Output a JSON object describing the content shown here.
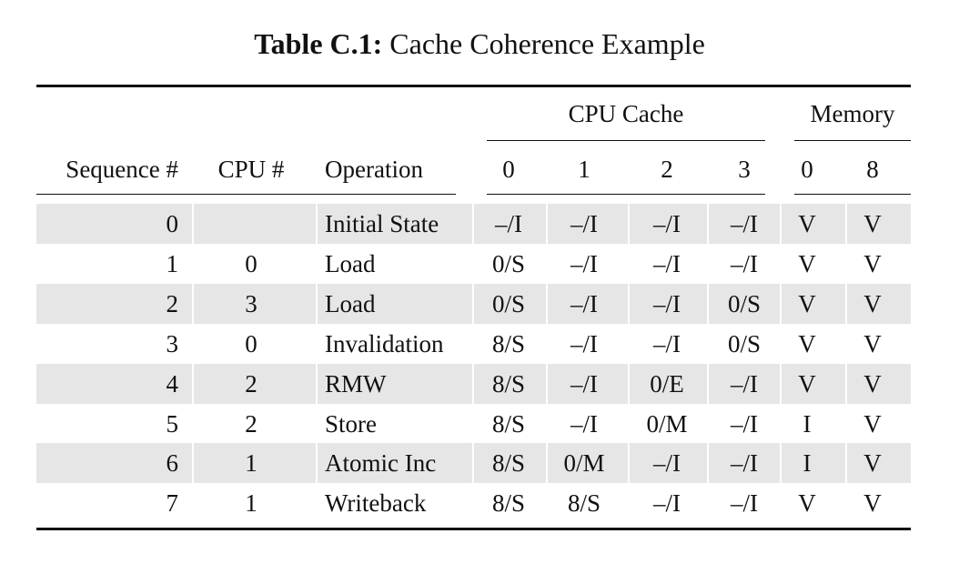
{
  "caption": {
    "label": "Table C.1:",
    "text": "Cache Coherence Example"
  },
  "group_headers": {
    "cpu_cache": "CPU Cache",
    "memory": "Memory"
  },
  "headers": [
    "Sequence #",
    "CPU #",
    "Operation",
    "0",
    "1",
    "2",
    "3",
    "0",
    "8"
  ],
  "rows": [
    [
      "0",
      "",
      "Initial State",
      "–/I",
      "–/I",
      "–/I",
      "–/I",
      "V",
      "V"
    ],
    [
      "1",
      "0",
      "Load",
      "0/S",
      "–/I",
      "–/I",
      "–/I",
      "V",
      "V"
    ],
    [
      "2",
      "3",
      "Load",
      "0/S",
      "–/I",
      "–/I",
      "0/S",
      "V",
      "V"
    ],
    [
      "3",
      "0",
      "Invalidation",
      "8/S",
      "–/I",
      "–/I",
      "0/S",
      "V",
      "V"
    ],
    [
      "4",
      "2",
      "RMW",
      "8/S",
      "–/I",
      "0/E",
      "–/I",
      "V",
      "V"
    ],
    [
      "5",
      "2",
      "Store",
      "8/S",
      "–/I",
      "0/M",
      "–/I",
      "I",
      "V"
    ],
    [
      "6",
      "1",
      "Atomic Inc",
      "8/S",
      "0/M",
      "–/I",
      "–/I",
      "I",
      "V"
    ],
    [
      "7",
      "1",
      "Writeback",
      "8/S",
      "8/S",
      "–/I",
      "–/I",
      "V",
      "V"
    ]
  ],
  "style": {
    "shade_color": "#e6e6e6",
    "rule_color": "#111111"
  }
}
